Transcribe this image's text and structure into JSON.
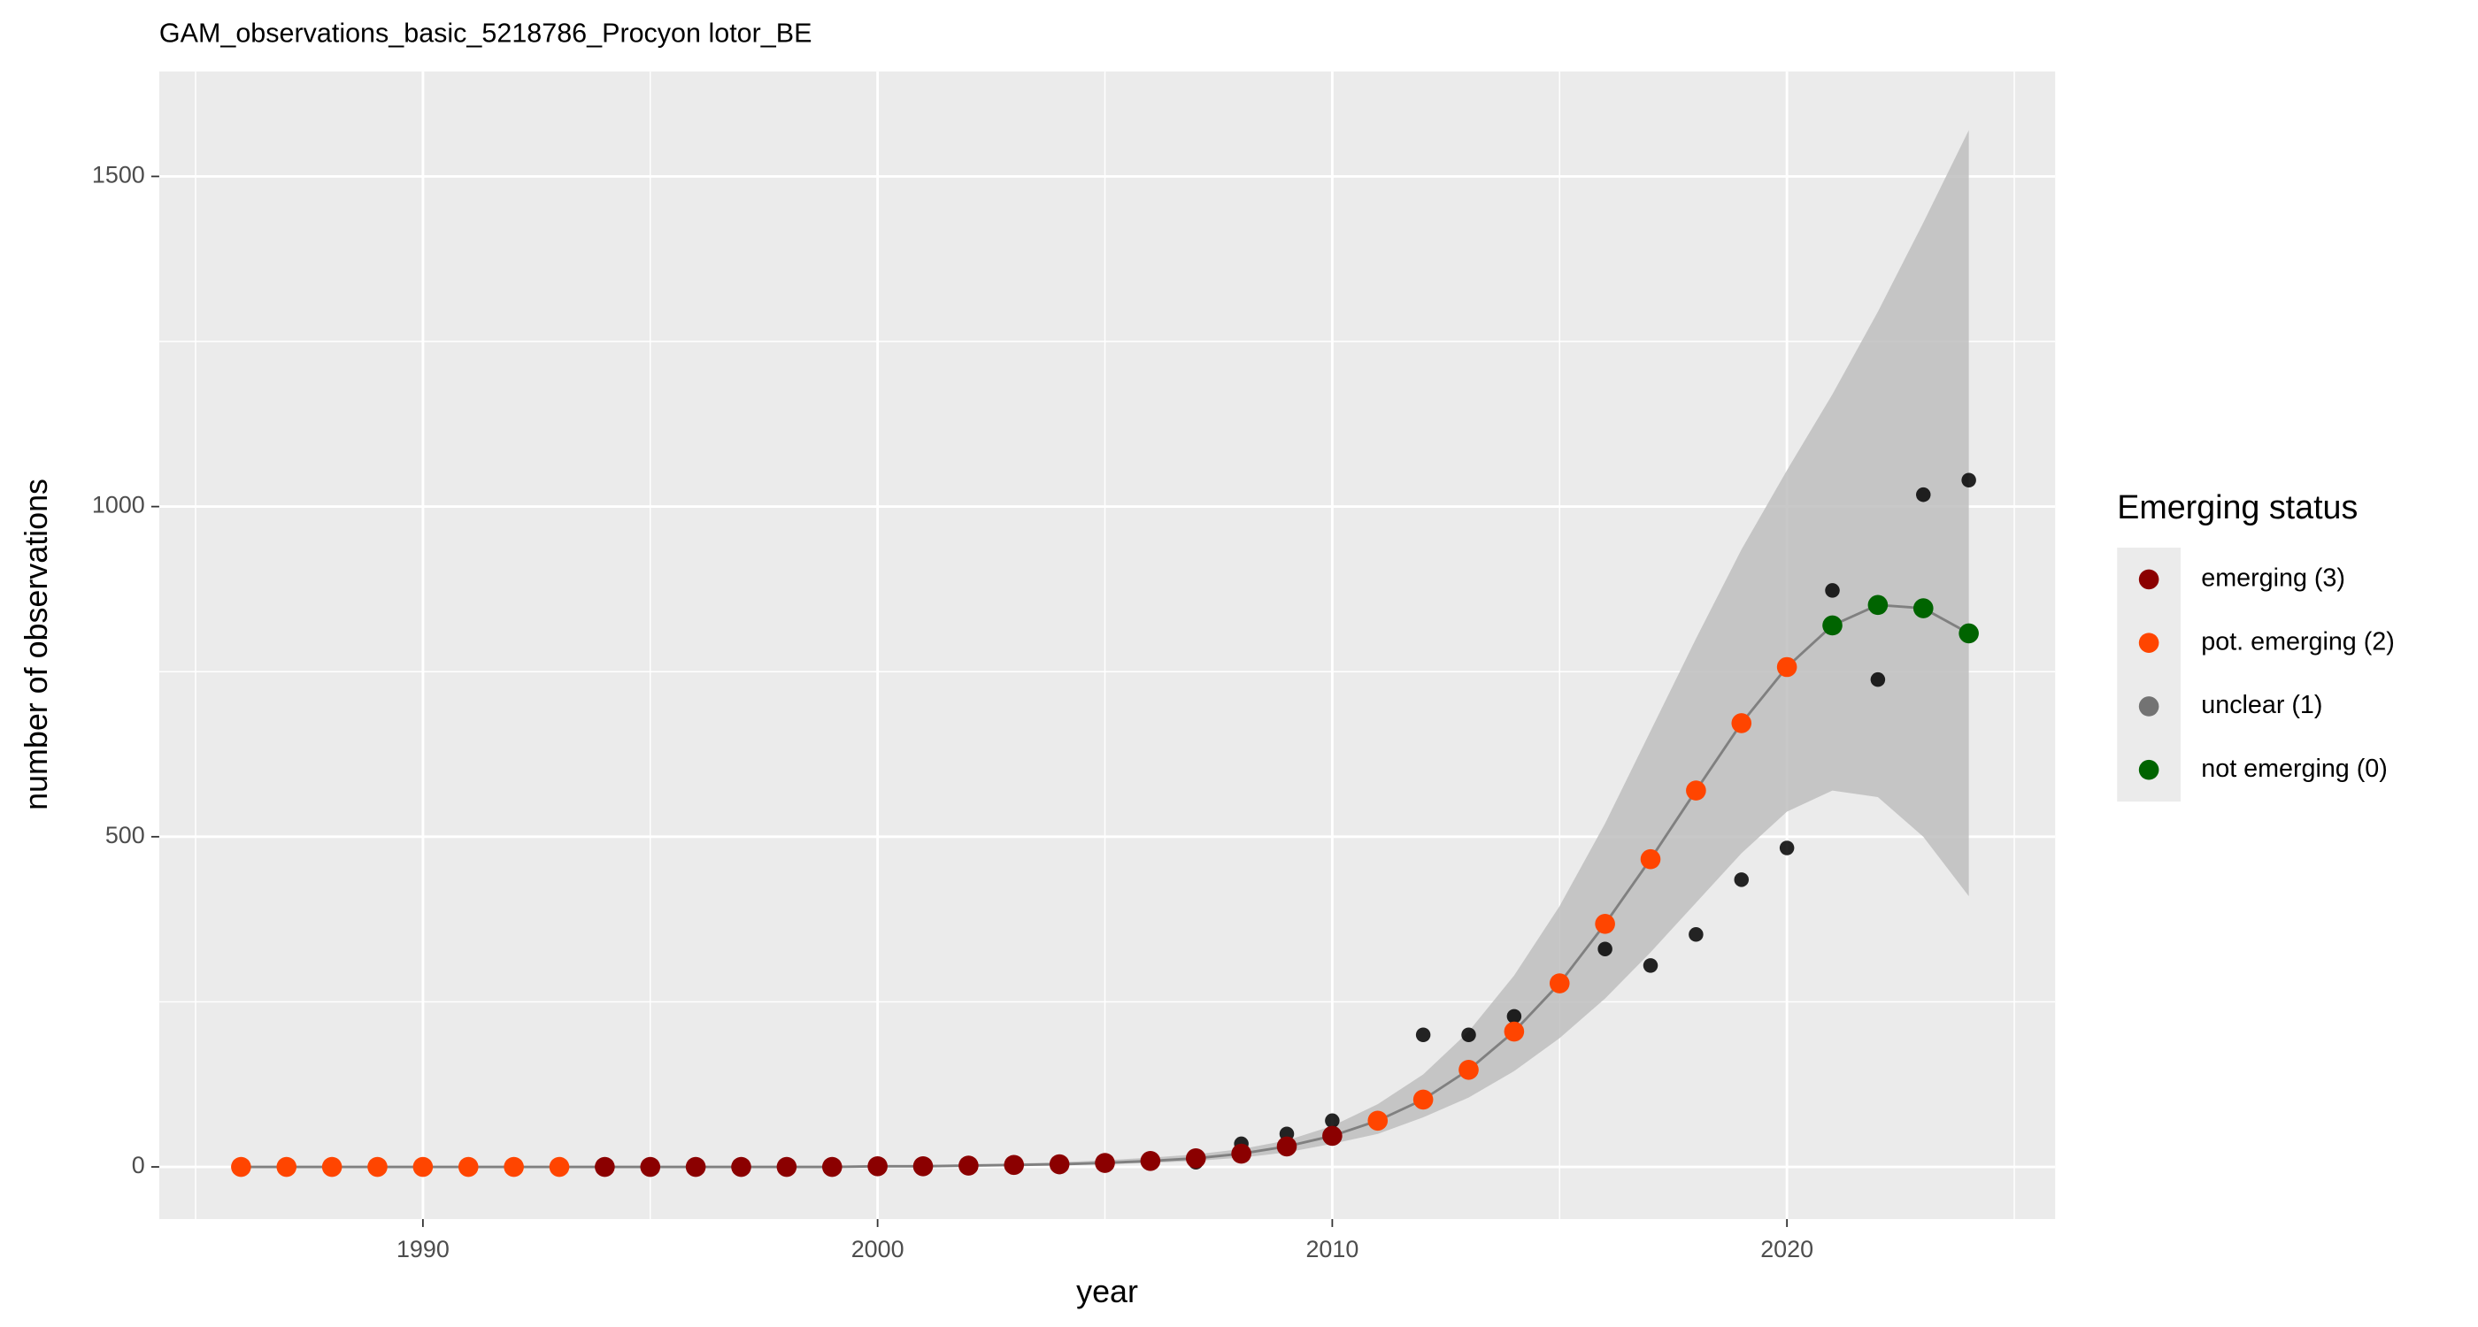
{
  "chart_data": {
    "type": "scatter",
    "title": "GAM_observations_basic_5218786_Procyon lotor_BE",
    "x_label": "year",
    "y_label": "number of observations",
    "x": [
      1986,
      1987,
      1988,
      1989,
      1990,
      1991,
      1992,
      1993,
      1994,
      1995,
      1996,
      1997,
      1998,
      1999,
      2000,
      2001,
      2002,
      2003,
      2004,
      2005,
      2006,
      2007,
      2008,
      2009,
      2010,
      2011,
      2012,
      2013,
      2014,
      2015,
      2016,
      2017,
      2018,
      2019,
      2020,
      2021,
      2022,
      2023,
      2024
    ],
    "xlim": [
      1984.2,
      2025.9
    ],
    "ylim": [
      -79,
      1659
    ],
    "xticks": [
      1990,
      2000,
      2010,
      2020
    ],
    "yticks": [
      0,
      500,
      1000,
      1500
    ],
    "x_minor_grid": [
      1985,
      1995,
      2005,
      2015,
      2025
    ],
    "y_minor_grid": [
      250,
      750,
      1250
    ],
    "grid": true,
    "observations": {
      "color": "#000000",
      "values": [
        0,
        0,
        0,
        0,
        0,
        0,
        0,
        0,
        0,
        0,
        0,
        0,
        0,
        0,
        0,
        0,
        0,
        0,
        0,
        5,
        8,
        7,
        35,
        50,
        70,
        68,
        200,
        200,
        228,
        278,
        330,
        305,
        352,
        435,
        483,
        873,
        738,
        1018,
        1040
      ]
    },
    "fit": {
      "color": "#808080",
      "values": [
        0,
        0,
        0,
        0,
        0,
        0,
        0,
        0,
        0,
        0,
        0,
        0,
        0,
        0,
        1,
        1,
        2,
        3,
        4,
        6,
        9,
        13,
        20,
        31,
        47,
        70,
        102,
        147,
        205,
        278,
        368,
        466,
        570,
        672,
        757,
        820,
        851,
        846,
        808
      ],
      "status": [
        "pot. emerging (2)",
        "pot. emerging (2)",
        "pot. emerging (2)",
        "pot. emerging (2)",
        "pot. emerging (2)",
        "pot. emerging (2)",
        "pot. emerging (2)",
        "pot. emerging (2)",
        "emerging (3)",
        "emerging (3)",
        "emerging (3)",
        "emerging (3)",
        "emerging (3)",
        "emerging (3)",
        "emerging (3)",
        "emerging (3)",
        "emerging (3)",
        "emerging (3)",
        "emerging (3)",
        "emerging (3)",
        "emerging (3)",
        "emerging (3)",
        "emerging (3)",
        "emerging (3)",
        "emerging (3)",
        "pot. emerging (2)",
        "pot. emerging (2)",
        "pot. emerging (2)",
        "pot. emerging (2)",
        "pot. emerging (2)",
        "pot. emerging (2)",
        "pot. emerging (2)",
        "pot. emerging (2)",
        "pot. emerging (2)",
        "pot. emerging (2)",
        "not emerging (0)",
        "not emerging (0)",
        "not emerging (0)",
        "not emerging (0)"
      ]
    },
    "band": {
      "color": "#bebebe",
      "lower": [
        0,
        0,
        0,
        0,
        0,
        0,
        0,
        0,
        0,
        0,
        0,
        0,
        0,
        0,
        0,
        1,
        1,
        2,
        3,
        4,
        6,
        9,
        14,
        22,
        35,
        50,
        75,
        105,
        145,
        195,
        255,
        325,
        400,
        475,
        538,
        570,
        560,
        500,
        410
      ],
      "upper": [
        0,
        0,
        0,
        0,
        0,
        0,
        0,
        0,
        0,
        0,
        0,
        0,
        0,
        0,
        2,
        3,
        4,
        5,
        7,
        10,
        14,
        19,
        27,
        40,
        62,
        95,
        140,
        205,
        290,
        395,
        520,
        660,
        800,
        935,
        1055,
        1170,
        1295,
        1430,
        1570
      ]
    },
    "legend": {
      "title": "Emerging status",
      "position": "right",
      "entries": [
        {
          "name": "emerging (3)",
          "color": "#8b0000"
        },
        {
          "name": "pot. emerging (2)",
          "color": "#ff4500"
        },
        {
          "name": "unclear (1)",
          "color": "#737373"
        },
        {
          "name": "not emerging (0)",
          "color": "#006400"
        }
      ]
    }
  }
}
